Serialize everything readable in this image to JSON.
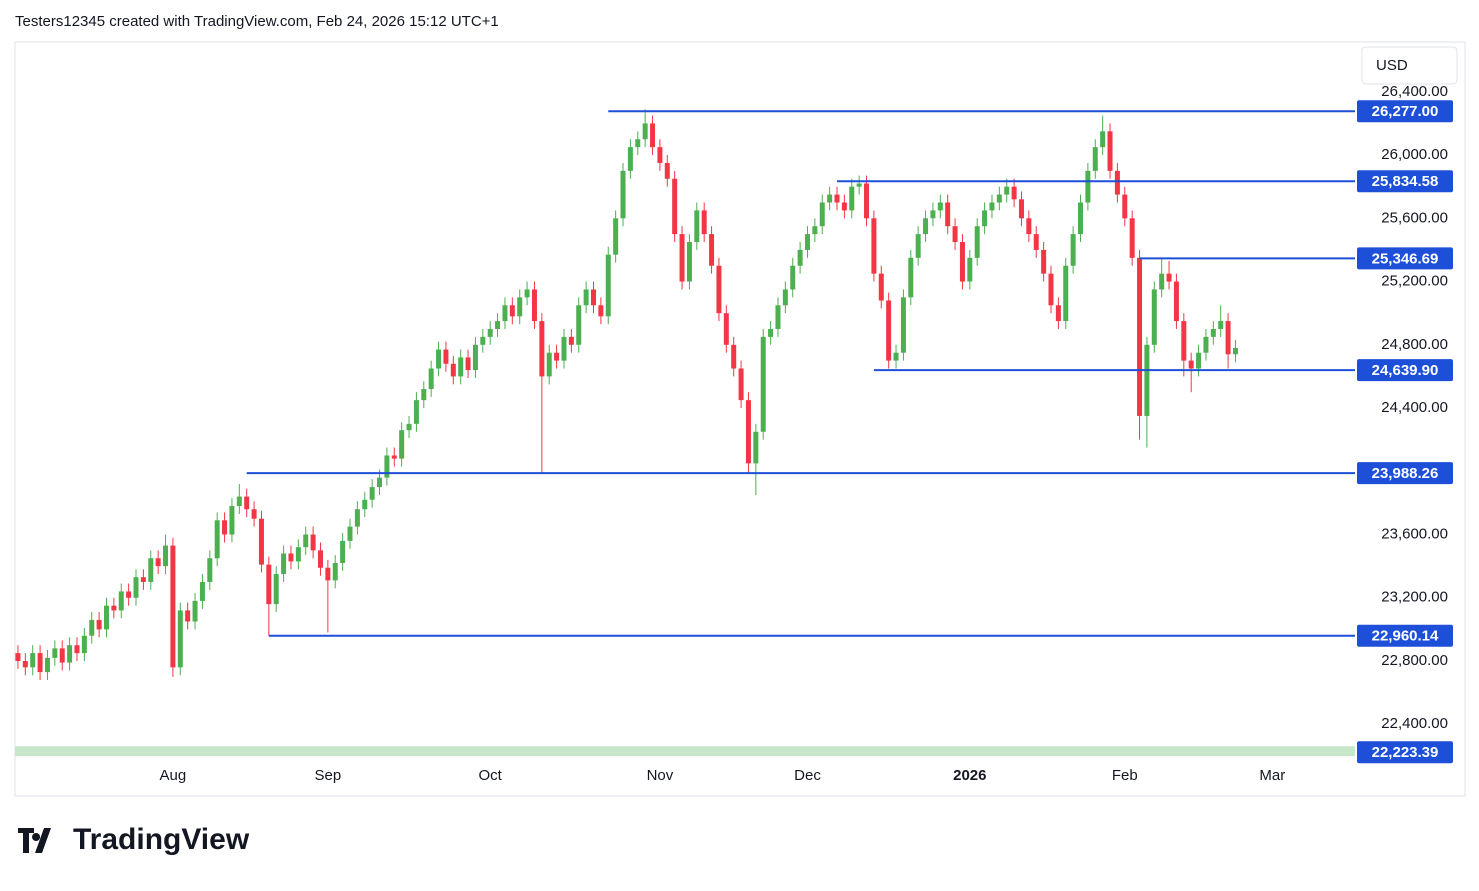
{
  "header": "Testers12345 created with TradingView.com, Feb 24, 2026 15:12 UTC+1",
  "currency": "USD",
  "logo": "TradingView",
  "chart_data": {
    "type": "candlestick",
    "up_color": "#4caf50",
    "down_color": "#f23645",
    "level_color": "#1e4fd8",
    "band_color": "#c8e6c9",
    "xlim": [
      -0.4,
      181.2
    ],
    "ylim": [
      22174,
      26715
    ],
    "xticks": [
      {
        "value": 21,
        "label": "Aug"
      },
      {
        "value": 42,
        "label": "Sep"
      },
      {
        "value": 64,
        "label": "Oct"
      },
      {
        "value": 87,
        "label": "Nov"
      },
      {
        "value": 107,
        "label": "Dec"
      },
      {
        "value": 129,
        "label": "2026"
      },
      {
        "value": 150,
        "label": "Feb"
      },
      {
        "value": 170,
        "label": "Mar"
      }
    ],
    "yticks": [
      {
        "value": 22400,
        "label": "22,400.00"
      },
      {
        "value": 22800,
        "label": "22,800.00"
      },
      {
        "value": 23200,
        "label": "23,200.00"
      },
      {
        "value": 23600,
        "label": "23,600.00"
      },
      {
        "value": 24400,
        "label": "24,400.00"
      },
      {
        "value": 24800,
        "label": "24,800.00"
      },
      {
        "value": 25200,
        "label": "25,200.00"
      },
      {
        "value": 25600,
        "label": "25,600.00"
      },
      {
        "value": 26000,
        "label": "26,000.00"
      },
      {
        "value": 26400,
        "label": "26,400.00"
      }
    ],
    "levels": [
      {
        "value": 26277,
        "label": "26,277.00",
        "start": 80
      },
      {
        "value": 25834.58,
        "label": "25,834.58",
        "start": 111
      },
      {
        "value": 25346.69,
        "label": "25,346.69",
        "start": 152
      },
      {
        "value": 24639.9,
        "label": "24,639.90",
        "start": 116
      },
      {
        "value": 23988.26,
        "label": "23,988.26",
        "start": 31
      },
      {
        "value": 22960.14,
        "label": "22,960.14",
        "start": 34
      },
      {
        "value": 22223.39,
        "label": "22,223.39",
        "start": 0,
        "band": true
      }
    ],
    "open": [
      22850,
      22800,
      22760,
      22850,
      22730,
      22820,
      22880,
      22790,
      22900,
      22850,
      22960,
      23060,
      23000,
      23150,
      23120,
      23240,
      23200,
      23330,
      23300,
      23450,
      23400,
      23530,
      22760,
      23120,
      23050,
      23180,
      23300,
      23450,
      23690,
      23600,
      23780,
      23840,
      23760,
      23700,
      23410,
      23160,
      23350,
      23480,
      23430,
      23520,
      23600,
      23500,
      23390,
      23310,
      23420,
      23560,
      23650,
      23760,
      23820,
      23900,
      23960,
      24100,
      24080,
      24260,
      24300,
      24450,
      24520,
      24650,
      24770,
      24680,
      24600,
      24720,
      24640,
      24800,
      24850,
      24900,
      24950,
      25050,
      24980,
      25100,
      25150,
      24950,
      24600,
      24750,
      24700,
      24850,
      24800,
      25050,
      25150,
      25050,
      24980,
      25370,
      25600,
      25900,
      26050,
      26100,
      26200,
      26050,
      25950,
      25850,
      25500,
      25200,
      25450,
      25650,
      25500,
      25300,
      25000,
      24800,
      24650,
      24450,
      24050,
      24250,
      24850,
      24900,
      25050,
      25150,
      25300,
      25400,
      25500,
      25550,
      25700,
      25750,
      25700,
      25650,
      25800,
      25820,
      25600,
      25250,
      25080,
      24700,
      24750,
      25100,
      25350,
      25500,
      25600,
      25650,
      25700,
      25550,
      25450,
      25200,
      25350,
      25550,
      25650,
      25700,
      25750,
      25800,
      25720,
      25600,
      25500,
      25400,
      25250,
      25050,
      24950,
      25300,
      25500,
      25700,
      25900,
      26050,
      26150,
      25900,
      25750,
      25600,
      25350,
      24350,
      24800,
      25150,
      25250,
      25200,
      24950,
      24700,
      24650,
      24750,
      24850,
      24900,
      24950,
      24740
    ],
    "high": [
      22900,
      22850,
      22900,
      22900,
      22870,
      22930,
      22930,
      22950,
      22950,
      23010,
      23110,
      23110,
      23200,
      23200,
      23290,
      23290,
      23380,
      23380,
      23500,
      23500,
      23600,
      23580,
      23170,
      23170,
      23230,
      23350,
      23500,
      23740,
      23740,
      23830,
      23920,
      23890,
      23810,
      23750,
      23460,
      23400,
      23530,
      23530,
      23570,
      23650,
      23650,
      23550,
      23440,
      23470,
      23610,
      23700,
      23810,
      23870,
      23950,
      24010,
      24150,
      24150,
      24310,
      24350,
      24500,
      24570,
      24700,
      24820,
      24820,
      24730,
      24770,
      24770,
      24850,
      24900,
      24950,
      25000,
      25100,
      25100,
      25150,
      25200,
      25200,
      25000,
      24800,
      24800,
      24900,
      24900,
      25100,
      25200,
      25200,
      25100,
      25420,
      25650,
      25950,
      26100,
      26150,
      26290,
      26250,
      26100,
      26000,
      25900,
      25550,
      25500,
      25700,
      25700,
      25550,
      25350,
      25050,
      24850,
      24700,
      24500,
      24300,
      24900,
      24950,
      25100,
      25200,
      25350,
      25450,
      25550,
      25600,
      25750,
      25800,
      25800,
      25750,
      25850,
      25870,
      25870,
      25650,
      25300,
      25130,
      24800,
      25150,
      25400,
      25550,
      25650,
      25700,
      25750,
      25750,
      25600,
      25500,
      25400,
      25600,
      25700,
      25750,
      25800,
      25850,
      25850,
      25770,
      25650,
      25550,
      25450,
      25300,
      25100,
      25350,
      25550,
      25750,
      25950,
      26100,
      26250,
      26200,
      25950,
      25800,
      25650,
      25400,
      24850,
      25200,
      25350,
      25330,
      25250,
      25000,
      24750,
      24800,
      24900,
      24950,
      25050,
      25000,
      24830
    ],
    "low": [
      22750,
      22710,
      22710,
      22680,
      22680,
      22770,
      22740,
      22740,
      22800,
      22800,
      22910,
      22950,
      22950,
      23070,
      23070,
      23150,
      23150,
      23250,
      23250,
      23350,
      23350,
      22700,
      22710,
      23000,
      23000,
      23130,
      23250,
      23400,
      23550,
      23550,
      23730,
      23710,
      23650,
      23360,
      22960,
      23110,
      23300,
      23380,
      23380,
      23470,
      23450,
      23340,
      22980,
      23260,
      23370,
      23510,
      23600,
      23710,
      23770,
      23850,
      23910,
      24030,
      24030,
      24210,
      24250,
      24400,
      24470,
      24600,
      24630,
      24550,
      24550,
      24590,
      24590,
      24750,
      24800,
      24850,
      24900,
      24930,
      24930,
      25050,
      24900,
      23990,
      24550,
      24650,
      24650,
      24750,
      24750,
      25000,
      25000,
      24930,
      24930,
      25320,
      25550,
      25850,
      26000,
      26050,
      26000,
      25900,
      25800,
      25450,
      25150,
      25150,
      25400,
      25450,
      25250,
      24950,
      24750,
      24600,
      24400,
      23990,
      23850,
      24200,
      24800,
      24850,
      25000,
      25100,
      25250,
      25350,
      25450,
      25500,
      25650,
      25650,
      25600,
      25600,
      25750,
      25550,
      25200,
      25030,
      24650,
      24650,
      24700,
      25050,
      25300,
      25450,
      25550,
      25600,
      25500,
      25400,
      25150,
      25150,
      25300,
      25500,
      25600,
      25650,
      25700,
      25670,
      25550,
      25450,
      25350,
      25200,
      25000,
      24900,
      24900,
      25250,
      25450,
      25650,
      25850,
      26000,
      25850,
      25700,
      25550,
      25300,
      24200,
      24150,
      24750,
      25100,
      25150,
      24900,
      24600,
      24500,
      24600,
      24700,
      24800,
      24850,
      24650,
      24690
    ],
    "close": [
      22800,
      22760,
      22850,
      22730,
      22820,
      22880,
      22790,
      22900,
      22850,
      22960,
      23060,
      23000,
      23150,
      23120,
      23240,
      23200,
      23330,
      23300,
      23450,
      23400,
      23530,
      22760,
      23120,
      23050,
      23180,
      23300,
      23450,
      23690,
      23600,
      23780,
      23840,
      23760,
      23700,
      23410,
      23160,
      23350,
      23480,
      23430,
      23520,
      23600,
      23500,
      23390,
      23310,
      23420,
      23560,
      23650,
      23760,
      23820,
      23900,
      23960,
      24100,
      24080,
      24260,
      24300,
      24450,
      24520,
      24650,
      24770,
      24680,
      24600,
      24720,
      24640,
      24800,
      24850,
      24900,
      24950,
      25050,
      24980,
      25100,
      25150,
      24950,
      24600,
      24750,
      24700,
      24850,
      24800,
      25050,
      25150,
      25050,
      24980,
      25370,
      25600,
      25900,
      26050,
      26100,
      26200,
      26050,
      25950,
      25850,
      25500,
      25200,
      25450,
      25650,
      25500,
      25300,
      25000,
      24800,
      24650,
      24450,
      24050,
      24250,
      24850,
      24900,
      25050,
      25150,
      25300,
      25400,
      25500,
      25550,
      25700,
      25750,
      25700,
      25650,
      25800,
      25820,
      25600,
      25250,
      25080,
      24700,
      24750,
      25100,
      25350,
      25500,
      25600,
      25650,
      25700,
      25550,
      25450,
      25200,
      25350,
      25550,
      25650,
      25700,
      25750,
      25800,
      25720,
      25600,
      25500,
      25400,
      25250,
      25050,
      24950,
      25300,
      25500,
      25700,
      25900,
      26050,
      26150,
      25900,
      25750,
      25600,
      25350,
      24350,
      24800,
      25150,
      25250,
      25200,
      24950,
      24700,
      24650,
      24750,
      24850,
      24900,
      24950,
      24740,
      24780
    ]
  }
}
